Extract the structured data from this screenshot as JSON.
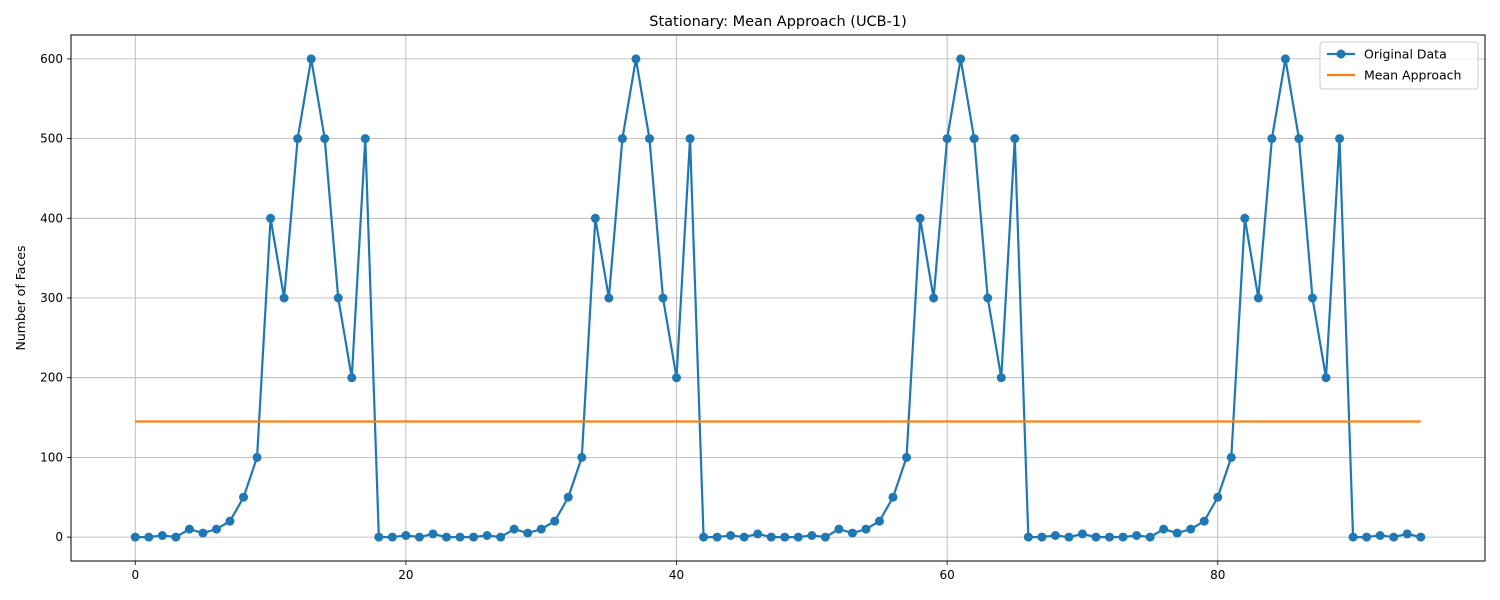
{
  "chart_data": {
    "type": "line",
    "title": "Stationary: Mean Approach (UCB-1)",
    "xlabel": "",
    "ylabel": "Number of Faces",
    "xlim": [
      -4.75,
      99.75
    ],
    "ylim": [
      -30,
      630
    ],
    "xticks": [
      0,
      20,
      40,
      60,
      80
    ],
    "yticks": [
      0,
      100,
      200,
      300,
      400,
      500,
      600
    ],
    "grid": true,
    "legend_position": "top-right",
    "series": [
      {
        "name": "Original Data",
        "color": "#1f77b4",
        "marker": "circle",
        "x": [
          0,
          1,
          2,
          3,
          4,
          5,
          6,
          7,
          8,
          9,
          10,
          11,
          12,
          13,
          14,
          15,
          16,
          17,
          18,
          19,
          20,
          21,
          22,
          23,
          24,
          25,
          26,
          27,
          28,
          29,
          30,
          31,
          32,
          33,
          34,
          35,
          36,
          37,
          38,
          39,
          40,
          41,
          42,
          43,
          44,
          45,
          46,
          47,
          48,
          49,
          50,
          51,
          52,
          53,
          54,
          55,
          56,
          57,
          58,
          59,
          60,
          61,
          62,
          63,
          64,
          65,
          66,
          67,
          68,
          69,
          70,
          71,
          72,
          73,
          74,
          75,
          76,
          77,
          78,
          79,
          80,
          81,
          82,
          83,
          84,
          85,
          86,
          87,
          88,
          89,
          90,
          91,
          92,
          93,
          94,
          95
        ],
        "y": [
          0,
          0,
          2,
          0,
          10,
          5,
          10,
          20,
          50,
          100,
          400,
          300,
          500,
          600,
          500,
          300,
          200,
          500,
          0,
          0,
          2,
          0,
          4,
          0,
          0,
          0,
          2,
          0,
          10,
          5,
          10,
          20,
          50,
          100,
          400,
          300,
          500,
          600,
          500,
          300,
          200,
          500,
          0,
          0,
          2,
          0,
          4,
          0,
          0,
          0,
          2,
          0,
          10,
          5,
          10,
          20,
          50,
          100,
          400,
          300,
          500,
          600,
          500,
          300,
          200,
          500,
          0,
          0,
          2,
          0,
          4,
          0,
          0,
          0,
          2,
          0,
          10,
          5,
          10,
          20,
          50,
          100,
          400,
          300,
          500,
          600,
          500,
          300,
          200,
          500,
          0,
          0,
          2,
          0,
          4,
          0
        ]
      },
      {
        "name": "Mean Approach",
        "color": "#ff7f0e",
        "marker": "none",
        "x": [
          0,
          95
        ],
        "y": [
          145,
          145
        ]
      }
    ]
  }
}
